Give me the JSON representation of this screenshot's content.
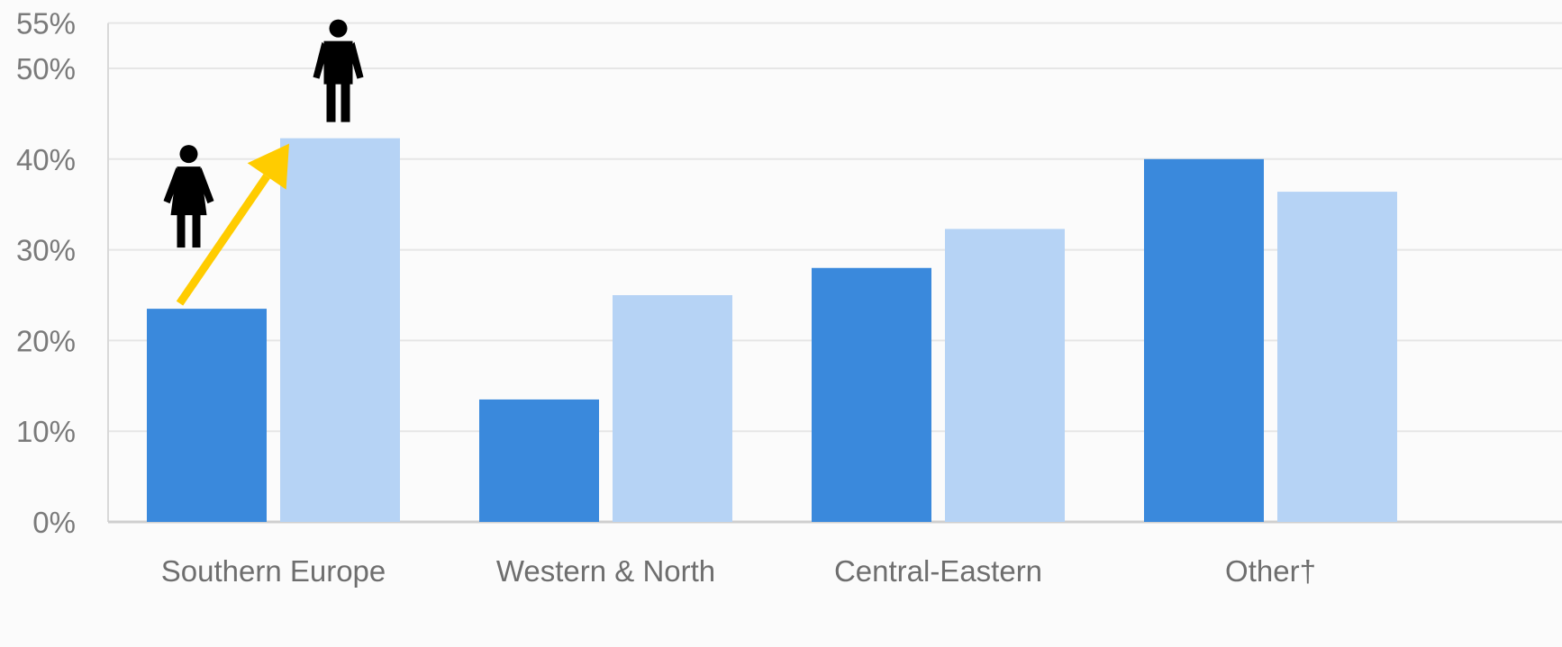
{
  "chart_data": {
    "type": "bar",
    "title": "",
    "xlabel": "",
    "ylabel": "",
    "categories": [
      "Southern Europe",
      "Western & North",
      "Central-Eastern",
      "Other†"
    ],
    "series": [
      {
        "values": [
          23.5,
          13.5,
          28.0,
          40.0
        ],
        "color": "#3a89dc"
      },
      {
        "values": [
          42.3,
          25.0,
          32.3,
          36.4
        ],
        "color": "#b6d3f5"
      }
    ],
    "ylim": [
      0,
      55
    ],
    "yticks": [
      0,
      10,
      20,
      30,
      40,
      50,
      55
    ],
    "ytick_labels": [
      "0%",
      "10%",
      "20%",
      "30%",
      "40%",
      "50%",
      "55%"
    ],
    "grid": true,
    "annotations": [
      {
        "type": "icon",
        "name": "woman-icon",
        "category": "Southern Europe",
        "series": 0
      },
      {
        "type": "icon",
        "name": "man-icon",
        "category": "Southern Europe",
        "series": 1
      },
      {
        "type": "arrow",
        "name": "increase-arrow",
        "from_series": 0,
        "to_series": 1,
        "category": "Southern Europe",
        "color": "#ffcc00"
      }
    ]
  }
}
